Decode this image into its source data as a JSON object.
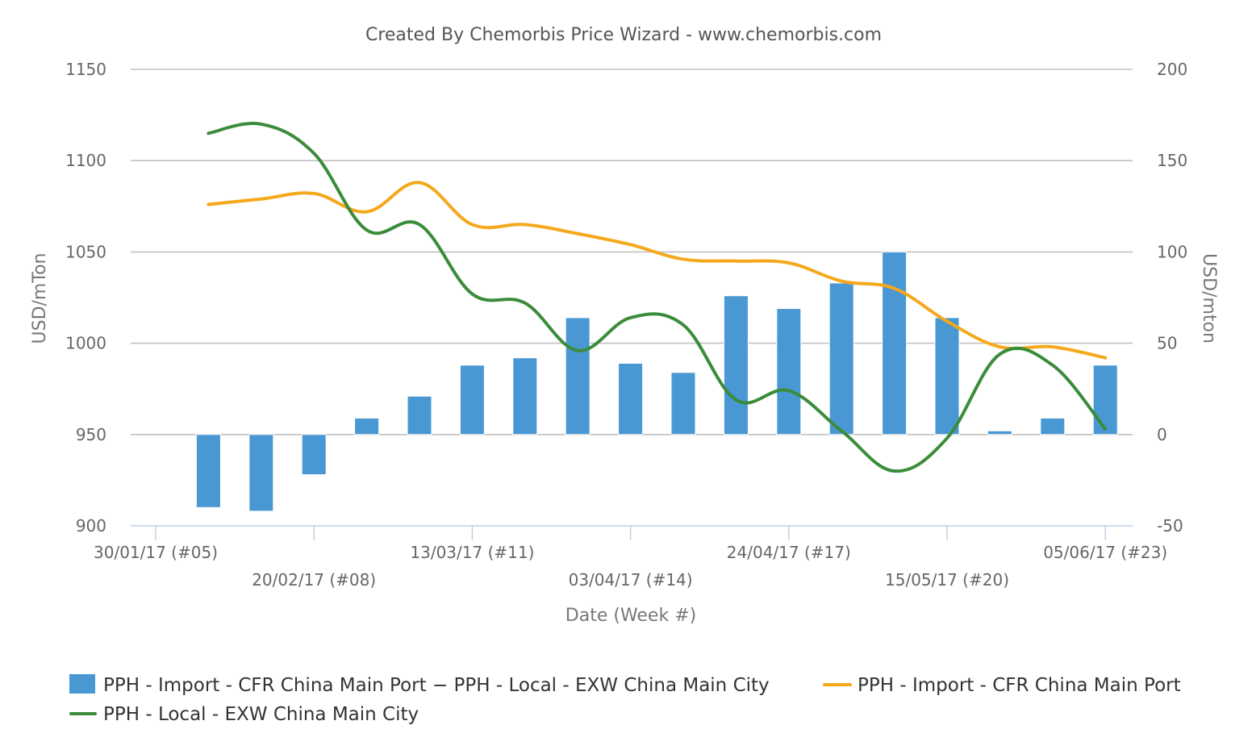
{
  "chart_data": {
    "type": "bar+line",
    "title": "Created By Chemorbis Price Wizard - www.chemorbis.com",
    "xlabel": "Date (Week #)",
    "ylabel_left": "USD/mTon",
    "ylabel_right": "USD/mton",
    "ylim_left": [
      900,
      1150
    ],
    "ylim_right": [
      -50,
      200
    ],
    "yticks_left": [
      "900",
      "950",
      "1000",
      "1050",
      "1100",
      "1150"
    ],
    "yticks_right": [
      "-50",
      "0",
      "50",
      "100",
      "150",
      "200"
    ],
    "grid": true,
    "legend_position": "bottom",
    "x_tick_labels": [
      {
        "week": 5,
        "label": "30/01/17 (#05)",
        "row": 1
      },
      {
        "week": 8,
        "label": "20/02/17 (#08)",
        "row": 2
      },
      {
        "week": 11,
        "label": "13/03/17 (#11)",
        "row": 1
      },
      {
        "week": 14,
        "label": "03/04/17 (#14)",
        "row": 2
      },
      {
        "week": 17,
        "label": "24/04/17 (#17)",
        "row": 1
      },
      {
        "week": 20,
        "label": "15/05/17 (#20)",
        "row": 2
      },
      {
        "week": 23,
        "label": "05/06/17 (#23)",
        "row": 1
      }
    ],
    "weeks": [
      6,
      7,
      8,
      9,
      10,
      11,
      12,
      13,
      14,
      15,
      16,
      17,
      18,
      19,
      20,
      21,
      22,
      23
    ],
    "series": [
      {
        "name": "PPH - Import - CFR China Main Port − PPH - Local - EXW China Main City",
        "kind": "bar",
        "axis": "right",
        "color": "#4a98d3",
        "values": [
          -40,
          -42,
          -22,
          9,
          21,
          38,
          42,
          64,
          39,
          34,
          76,
          69,
          83,
          100,
          64,
          2,
          9,
          38
        ]
      },
      {
        "name": "PPH - Import - CFR China Main Port",
        "kind": "line",
        "axis": "left",
        "color": "#f5a81c",
        "values": [
          1076,
          1079,
          1082,
          1072,
          1088,
          1065,
          1065,
          1060,
          1054,
          1046,
          1045,
          1044,
          1034,
          1030,
          1012,
          998,
          998,
          992
        ]
      },
      {
        "name": "PPH - Local - EXW China Main City",
        "kind": "line",
        "axis": "left",
        "color": "#3a8c3a",
        "values": [
          1115,
          1120,
          1104,
          1062,
          1065,
          1027,
          1022,
          996,
          1014,
          1010,
          969,
          974,
          952,
          930,
          948,
          994,
          988,
          953
        ]
      }
    ]
  }
}
